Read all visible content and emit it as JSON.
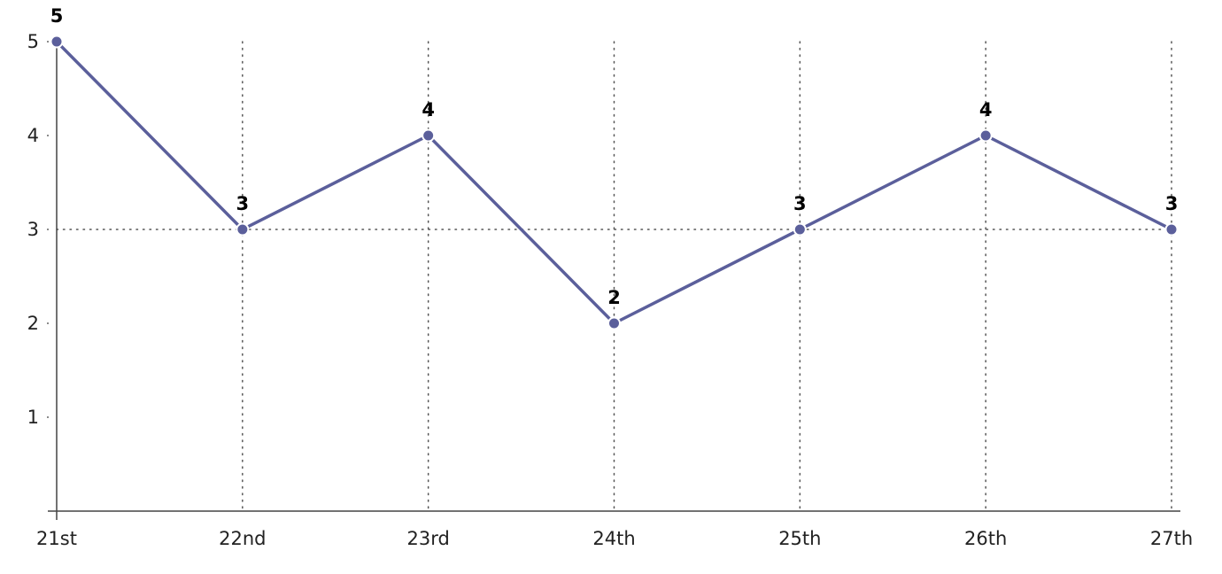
{
  "chart_data": {
    "type": "line",
    "title": "",
    "xlabel": "",
    "ylabel": "",
    "categories": [
      "21st",
      "22nd",
      "23rd",
      "24th",
      "25th",
      "26th",
      "27th"
    ],
    "series": [
      {
        "values": [
          5,
          3,
          4,
          2,
          3,
          4,
          3
        ],
        "color": "#5b5f9b"
      }
    ],
    "y_ticks": [
      "1",
      "2",
      "3",
      "4",
      "5"
    ],
    "ylim": [
      0,
      5
    ],
    "data_labels": [
      "5",
      "3",
      "4",
      "2",
      "3",
      "4",
      "3"
    ],
    "grid": {
      "vertical_dotted": true,
      "horizontal_dotted_at": 3
    },
    "legend": "none"
  }
}
